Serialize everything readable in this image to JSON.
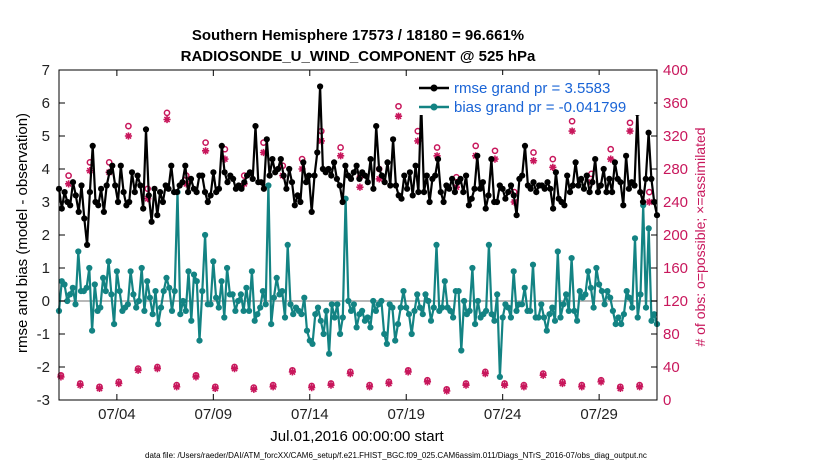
{
  "chart_data": {
    "type": "line",
    "title_line1": "Southern Hemisphere 17573 / 18180 = 96.661%",
    "title_line2": "RADIOSONDE_U_WIND_COMPONENT @ 525 hPa",
    "xlabel": "Jul.01,2016 00:00:00 start",
    "ylabel": "rmse and bias (model - observation)",
    "ylabel_right": "# of obs: o=possible; ×=assimilated",
    "footer": "data file: /Users/raeder/DAI/ATM_forcXX/CAM6_setup/f.e21.FHIST_BGC.f09_025.CAM6assim.011/Diags_NTrS_2016-07/obs_diag_output.nc",
    "xlim": [
      1.0,
      32.0
    ],
    "ylim": [
      -3,
      7
    ],
    "ylim_right": [
      0,
      400
    ],
    "x_tick_positions": [
      4,
      9,
      14,
      19,
      24,
      29
    ],
    "x_tick_labels": [
      "07/04",
      "07/09",
      "07/14",
      "07/19",
      "07/24",
      "07/29"
    ],
    "y_ticks": [
      "-3",
      "-2",
      "-1",
      "0",
      "1",
      "2",
      "3",
      "4",
      "5",
      "6",
      "7"
    ],
    "y_ticks_right": [
      "0",
      "40",
      "80",
      "120",
      "160",
      "200",
      "240",
      "280",
      "320",
      "360",
      "400"
    ],
    "colors": {
      "rmse": "#000000",
      "bias": "#138383",
      "obs": "#c8175c",
      "zero": "#b8b8b8"
    },
    "series": [
      {
        "name": "rmse grand pr = 3.5583",
        "axis": "left",
        "values": [
          3.4,
          2.8,
          3.3,
          3.0,
          2.9,
          3.6,
          3.2,
          2.7,
          3.5,
          2.5,
          1.7,
          3.3,
          4.7,
          3.0,
          2.9,
          3.4,
          2.7,
          3.5,
          3.9,
          4.1,
          3.5,
          3.0,
          4.1,
          3.3,
          2.9,
          3.0,
          3.9,
          3.3,
          3.8,
          3.5,
          2.8,
          5.2,
          3.2,
          2.4,
          3.4,
          2.6,
          3.3,
          3.0,
          3.5,
          3.4,
          4.1,
          3.3,
          3.3,
          3.5,
          3.6,
          4.1,
          3.3,
          3.7,
          3.4,
          3.3,
          3.8,
          3.8,
          3.3,
          3.0,
          3.2,
          3.9,
          3.3,
          3.4,
          4.7,
          3.9,
          3.6,
          3.8,
          3.7,
          3.4,
          3.5,
          3.4,
          3.6,
          3.8,
          3.9,
          3.7,
          5.3,
          3.6,
          3.6,
          3.4,
          4.9,
          3.8,
          4.3,
          3.9,
          4.0,
          4.3,
          3.8,
          3.4,
          4.0,
          3.6,
          2.9,
          3.2,
          3.0,
          4.2,
          3.6,
          3.8,
          2.7,
          3.8,
          4.5,
          6.5,
          4.0,
          3.9,
          4.0,
          3.8,
          4.2,
          3.7,
          3.5,
          3.0,
          4.1,
          3.8,
          3.7,
          3.9,
          4.1,
          3.7,
          3.9,
          3.8,
          3.6,
          4.3,
          3.4,
          5.3,
          4.0,
          3.8,
          3.6,
          4.2,
          3.5,
          4.9,
          3.5,
          3.2,
          3.1,
          3.8,
          3.4,
          3.9,
          3.2,
          4.1,
          3.3,
          6.0,
          3.3,
          3.8,
          3.0,
          3.7,
          3.8,
          4.3,
          3.3,
          3.0,
          3.5,
          3.4,
          3.7,
          3.3,
          3.6,
          3.7,
          3.3,
          3.8,
          2.9,
          3.1,
          3.4,
          4.4,
          3.4,
          3.6,
          2.8,
          3.2,
          4.3,
          3.0,
          3.0,
          3.5,
          3.4,
          3.1,
          3.3,
          3.5,
          3.2,
          2.6,
          3.7,
          3.8,
          4.7,
          3.5,
          3.4,
          3.6,
          3.3,
          3.5,
          3.5,
          3.4,
          3.6,
          3.4,
          2.8,
          3.9,
          3.1,
          3.0,
          2.9,
          3.8,
          3.3,
          3.5,
          4.2,
          3.5,
          3.7,
          3.4,
          3.8,
          3.3,
          3.6,
          4.3,
          3.3,
          3.5,
          4.0,
          3.3,
          3.7,
          3.3,
          4.2,
          3.7,
          3.6,
          2.9,
          4.4,
          3.4,
          3.6,
          3.5,
          5.7,
          3.3,
          3.0,
          3.7,
          5.1,
          3.7,
          3.0,
          2.6
        ]
      },
      {
        "name": "bias grand pr = -0.041799",
        "axis": "left",
        "values": [
          -0.3,
          0.6,
          0.5,
          0.0,
          0.2,
          0.4,
          -0.1,
          1.5,
          0.3,
          0.3,
          0.4,
          1.0,
          -0.9,
          0.5,
          -0.3,
          -0.2,
          0.7,
          0.3,
          1.2,
          0.2,
          -0.7,
          0.9,
          0.3,
          -0.3,
          -0.2,
          -0.1,
          0.9,
          0.2,
          -0.2,
          0.0,
          1.0,
          -0.3,
          0.6,
          0.1,
          -0.4,
          0.3,
          -0.7,
          -0.2,
          0.3,
          0.7,
          0.4,
          -0.3,
          0.3,
          3.3,
          -0.4,
          0.0,
          -0.3,
          0.9,
          -0.6,
          0.8,
          0.6,
          -1.2,
          0.3,
          2.0,
          -0.1,
          -0.1,
          1.2,
          0.1,
          -0.2,
          0.6,
          -0.5,
          1.0,
          0.2,
          0.2,
          -0.3,
          0.0,
          0.2,
          -0.3,
          0.4,
          -0.3,
          0.9,
          -0.6,
          -0.4,
          -0.2,
          0.3,
          -0.1,
          3.5,
          -0.7,
          0.1,
          0.7,
          0.2,
          0.3,
          -0.5,
          1.7,
          -0.1,
          -0.4,
          -0.2,
          -0.3,
          -0.4,
          0.1,
          -0.9,
          -1.2,
          -1.3,
          -0.4,
          -0.2,
          -0.6,
          -1.0,
          -0.3,
          -1.6,
          -0.1,
          -0.5,
          -0.1,
          -1.0,
          -0.5,
          3.1,
          0.0,
          -0.3,
          -0.1,
          -0.8,
          -0.4,
          -0.3,
          -0.6,
          -0.5,
          -0.8,
          0.0,
          -0.3,
          -0.1,
          0.0,
          -1.0,
          -1.3,
          -0.1,
          -0.2,
          -1.2,
          -0.7,
          -0.2,
          0.3,
          -0.2,
          -0.4,
          -1.0,
          -0.3,
          0.2,
          -0.2,
          -0.4,
          0.2,
          0.0,
          -0.6,
          -0.2,
          1.7,
          -0.3,
          -0.2,
          0.6,
          -0.2,
          -0.3,
          -0.5,
          0.3,
          0.3,
          -1.5,
          0.0,
          -0.4,
          -0.3,
          1.0,
          -0.7,
          0.0,
          -0.5,
          -0.4,
          -0.3,
          1.7,
          -0.4,
          -0.6,
          0.2,
          -2.3,
          -0.5,
          -0.1,
          -0.2,
          -0.5,
          0.9,
          -0.3,
          -0.1,
          -0.1,
          0.4,
          -0.3,
          -0.3,
          1.1,
          -0.5,
          -0.5,
          -0.1,
          -0.5,
          -0.9,
          -0.4,
          -0.2,
          -0.6,
          1.5,
          -0.5,
          -0.1,
          0.2,
          -0.3,
          1.3,
          -0.3,
          -0.6,
          0.3,
          0.1,
          0.2,
          0.9,
          0.4,
          -0.2,
          1.0,
          0.5,
          0.3,
          -0.1,
          0.3,
          0.1,
          -0.3,
          -0.7,
          -0.5,
          -0.7,
          -0.4,
          0.3,
          0.1,
          -0.2,
          1.9,
          -0.5,
          0.2,
          2.9,
          -0.2,
          2.2,
          -0.6,
          -0.4,
          -0.7
        ]
      },
      {
        "name": "# obs possible (o)",
        "axis": "right",
        "x": [
          1.1,
          1.5,
          2.1,
          2.6,
          3.1,
          3.6,
          4.1,
          4.6,
          5.1,
          5.6,
          6.1,
          6.6,
          7.1,
          7.6,
          8.1,
          8.6,
          9.1,
          9.6,
          10.1,
          10.6,
          11.1,
          11.6,
          12.1,
          12.6,
          13.1,
          13.6,
          14.1,
          14.6,
          15.1,
          15.6,
          16.1,
          16.6,
          17.1,
          17.6,
          18.1,
          18.6,
          19.1,
          19.6,
          20.1,
          20.6,
          21.1,
          21.6,
          22.1,
          22.6,
          23.1,
          23.6,
          24.1,
          24.6,
          25.1,
          25.6,
          26.1,
          26.6,
          27.1,
          27.6,
          28.1,
          28.6,
          29.1,
          29.6,
          30.1,
          30.6,
          31.1,
          31.6
        ],
        "values": [
          30,
          272,
          20,
          288,
          16,
          288,
          22,
          332,
          38,
          256,
          40,
          348,
          18,
          272,
          30,
          312,
          16,
          304,
          40,
          272,
          15,
          312,
          18,
          284,
          36,
          292,
          17,
          326,
          20,
          306,
          34,
          270,
          18,
          280,
          22,
          356,
          36,
          326,
          24,
          306,
          13,
          270,
          20,
          308,
          34,
          302,
          20,
          252,
          18,
          300,
          32,
          292,
          22,
          338,
          18,
          274,
          24,
          304,
          16,
          336,
          18,
          252
        ]
      },
      {
        "name": "# obs assimilated (x)",
        "axis": "right",
        "x": [
          1.1,
          1.5,
          2.1,
          2.6,
          3.1,
          3.6,
          4.1,
          4.6,
          5.1,
          5.6,
          6.1,
          6.6,
          7.1,
          7.6,
          8.1,
          8.6,
          9.1,
          9.6,
          10.1,
          10.6,
          11.1,
          11.6,
          12.1,
          12.6,
          13.1,
          13.6,
          14.1,
          14.6,
          15.1,
          15.6,
          16.1,
          16.6,
          17.1,
          17.6,
          18.1,
          18.6,
          19.1,
          19.6,
          20.1,
          20.6,
          21.1,
          21.6,
          22.1,
          22.6,
          23.1,
          23.6,
          24.1,
          24.6,
          25.1,
          25.6,
          26.1,
          26.6,
          27.1,
          27.6,
          28.1,
          28.6,
          29.1,
          29.6,
          30.1,
          30.6,
          31.1,
          31.6
        ],
        "values": [
          28,
          262,
          18,
          278,
          14,
          276,
          20,
          320,
          36,
          244,
          38,
          340,
          16,
          262,
          28,
          302,
          14,
          292,
          38,
          262,
          13,
          300,
          16,
          272,
          34,
          280,
          15,
          314,
          18,
          296,
          32,
          258,
          16,
          268,
          20,
          344,
          34,
          314,
          22,
          296,
          11,
          258,
          18,
          296,
          32,
          292,
          18,
          240,
          16,
          290,
          30,
          282,
          20,
          326,
          16,
          264,
          22,
          292,
          14,
          326,
          16,
          240
        ]
      }
    ]
  }
}
